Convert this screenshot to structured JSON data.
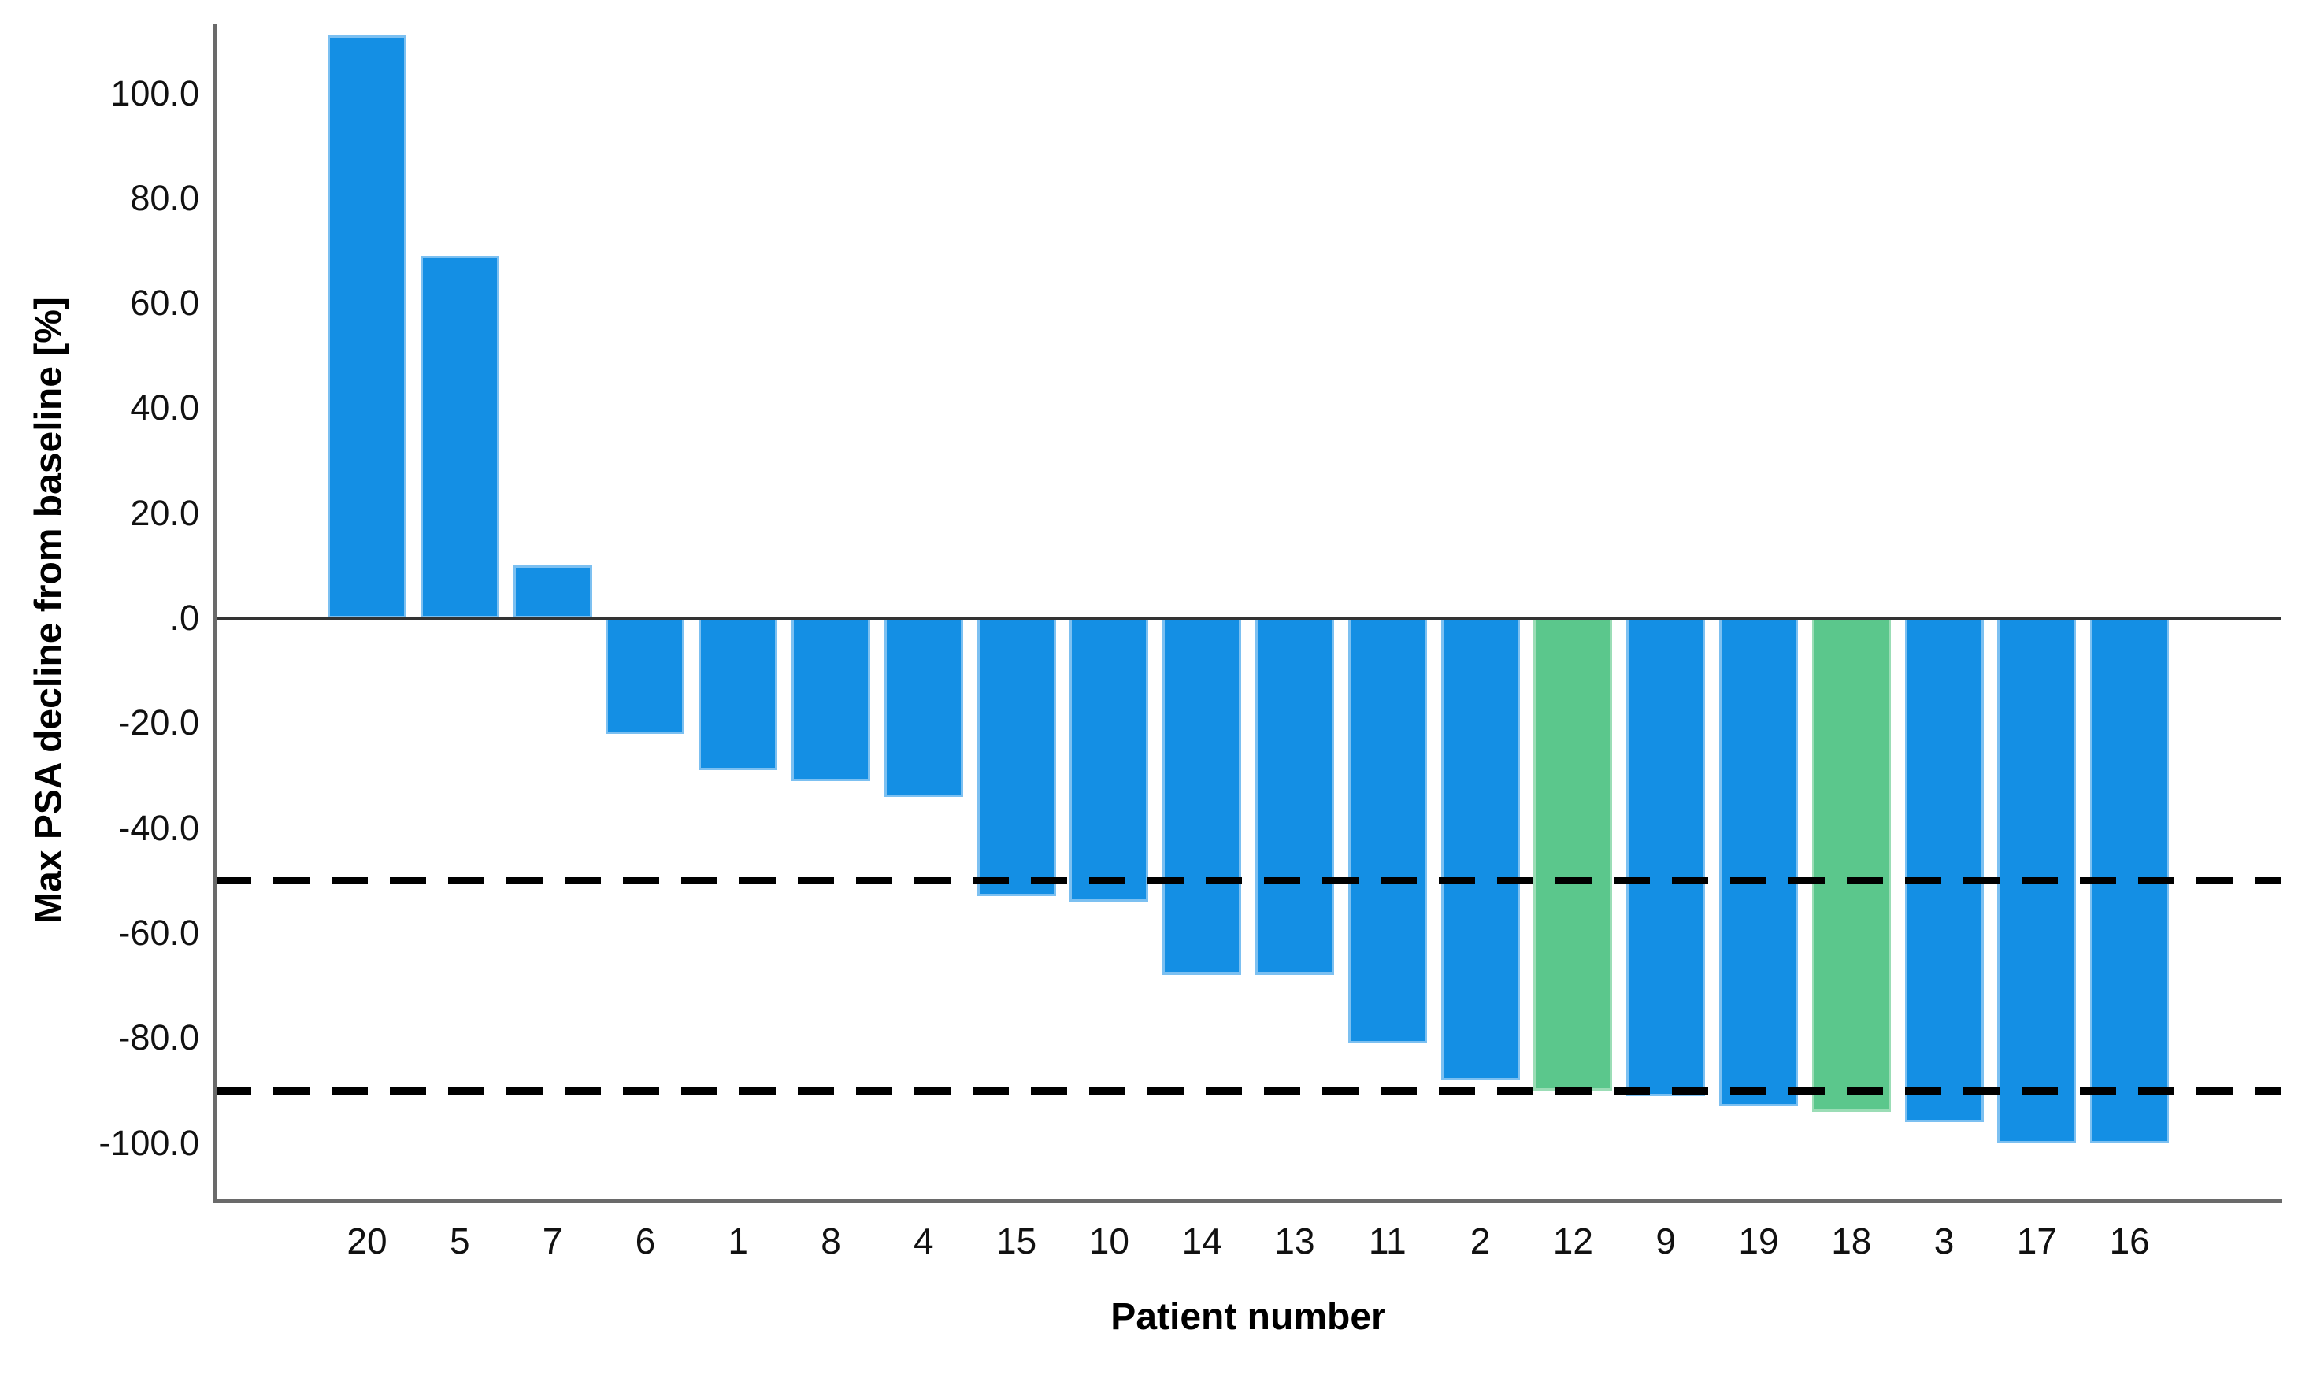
{
  "chart_data": {
    "type": "bar",
    "variant": "waterfall",
    "title": "",
    "xlabel": "Patient number",
    "ylabel": "Max PSA decline from baseline [%]",
    "categories": [
      "20",
      "5",
      "7",
      "6",
      "1",
      "8",
      "4",
      "15",
      "10",
      "14",
      "13",
      "11",
      "2",
      "12",
      "9",
      "19",
      "18",
      "3",
      "17",
      "16"
    ],
    "values": [
      111,
      69,
      10,
      -22,
      -29,
      -31,
      -34,
      -53,
      -54,
      -68,
      -68,
      -81,
      -88,
      -90,
      -91,
      -93,
      -94,
      -96,
      -100,
      -100
    ],
    "bar_color_keys": [
      "blue",
      "blue",
      "blue",
      "blue",
      "blue",
      "blue",
      "blue",
      "blue",
      "blue",
      "blue",
      "blue",
      "blue",
      "blue",
      "green",
      "blue",
      "blue",
      "green",
      "blue",
      "blue",
      "blue"
    ],
    "green_patients": [
      "12",
      "18"
    ],
    "y_ticks": [
      100,
      80,
      60,
      40,
      20,
      0,
      -20,
      -40,
      -60,
      -80,
      -100
    ],
    "y_tick_labels": [
      "100.0",
      "80.0",
      "60.0",
      "40.0",
      "20.0",
      ".0",
      "-20.0",
      "-40.0",
      "-60.0",
      "-80.0",
      "-100.0"
    ],
    "ylim": [
      -111,
      113
    ],
    "reference_lines": [
      -50,
      -90
    ],
    "grid": false,
    "legend_position": "none",
    "colors": {
      "bar_blue": "#148fe4",
      "bar_blue_edge": "#7cc0f1",
      "bar_green": "#5bc78c",
      "bar_green_edge": "#9bddb6",
      "axis_line": "#6a6a6a",
      "zero_line": "#333333",
      "reference_line": "#000000",
      "text": "#111111"
    }
  }
}
